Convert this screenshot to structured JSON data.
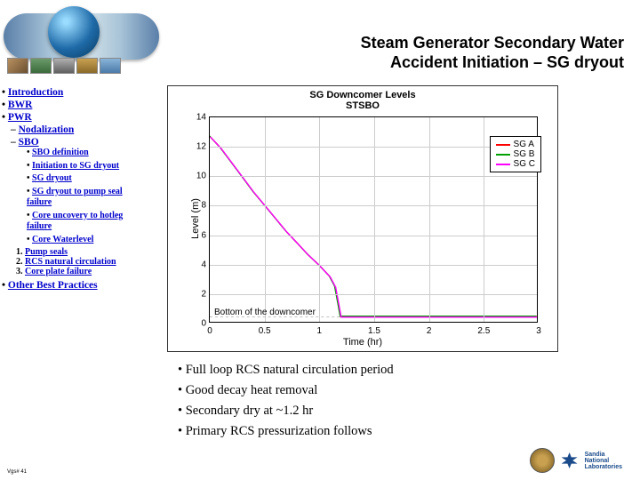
{
  "title_line1": "Steam Generator Secondary Water",
  "title_line2": "Accident Initiation – SG dryout",
  "nav": {
    "intro": "Introduction",
    "bwr": "BWR",
    "pwr": "PWR",
    "pwr_sub1": "Nodalization",
    "pwr_sub2": "SBO",
    "sbo_items": {
      "a": "SBO definition",
      "b": "Initiation to SG dryout",
      "c": "SG dryout",
      "d": "SG dryout to pump seal failure",
      "e": "Core uncovery to hotleg failure",
      "f": "Core Waterlevel"
    },
    "num1": "Pump seals",
    "num2": "RCS natural circulation",
    "num3": "Core plate failure",
    "other": "Other Best Practices"
  },
  "chart": {
    "title": "SG Downcomer Levels",
    "subtitle": "STSBO",
    "ylabel": "Level (m)",
    "xlabel": "Time (hr)",
    "ylim": [
      0,
      14
    ],
    "ytick_step": 2,
    "xlim": [
      0,
      3
    ],
    "xtick_step": 0.5,
    "grid_color": "#cccccc",
    "series": [
      {
        "name": "SG A",
        "color": "#ff0000"
      },
      {
        "name": "SG B",
        "color": "#00a000"
      },
      {
        "name": "SG C",
        "color": "#ff00ff"
      }
    ],
    "curve_points": [
      [
        0,
        12.7
      ],
      [
        0.1,
        11.9
      ],
      [
        0.2,
        10.9
      ],
      [
        0.3,
        9.9
      ],
      [
        0.4,
        8.9
      ],
      [
        0.5,
        8.0
      ],
      [
        0.6,
        7.1
      ],
      [
        0.7,
        6.2
      ],
      [
        0.8,
        5.4
      ],
      [
        0.9,
        4.6
      ],
      [
        1.0,
        3.9
      ],
      [
        1.05,
        3.5
      ],
      [
        1.1,
        3.1
      ],
      [
        1.15,
        2.4
      ],
      [
        1.18,
        1.2
      ],
      [
        1.2,
        0.35
      ],
      [
        1.3,
        0.35
      ],
      [
        2.0,
        0.35
      ],
      [
        3.0,
        0.35
      ]
    ],
    "bottom_note": "Bottom of the downcomer"
  },
  "bullets": {
    "b1": "Full loop RCS natural circulation period",
    "b2": "Good decay heat removal",
    "b3": "Secondary dry at ~1.2 hr",
    "b4": "Primary RCS pressurization follows"
  },
  "footer": "Vgs# 41",
  "sandia1": "Sandia",
  "sandia2": "National",
  "sandia3": "Laboratories"
}
